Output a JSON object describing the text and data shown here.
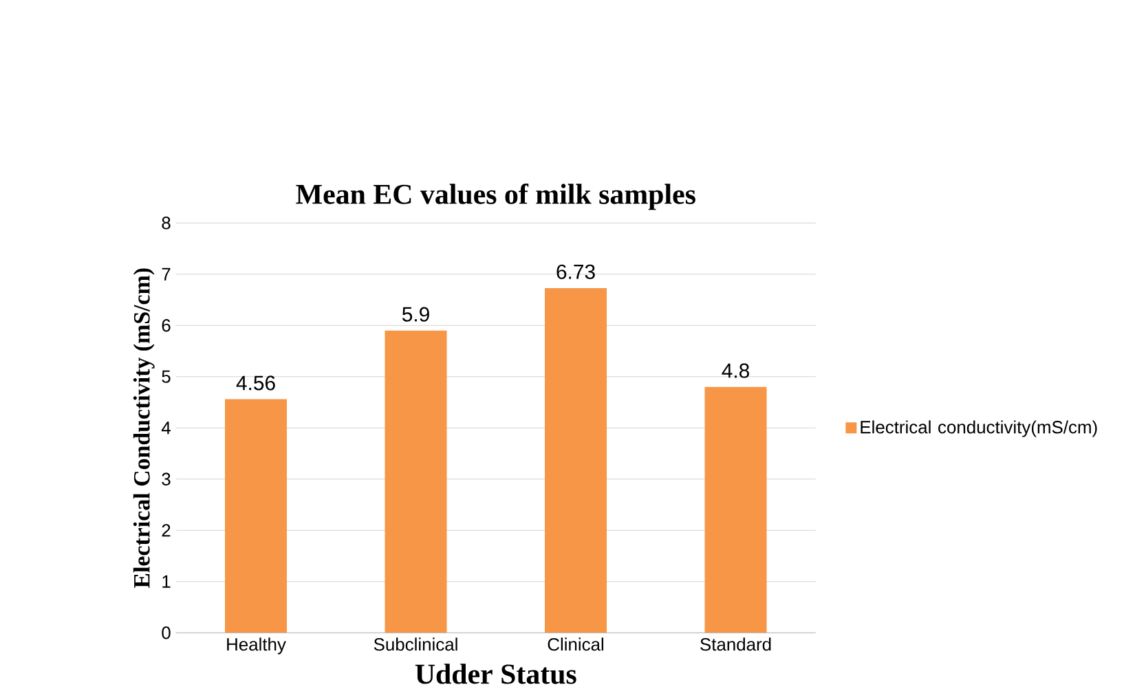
{
  "chart_data": {
    "type": "bar",
    "title": "Mean EC values of milk samples",
    "xlabel": "Udder Status",
    "ylabel": "Electrical Conductivity (mS/cm)",
    "categories": [
      "Healthy",
      "Subclinical",
      "Clinical",
      "Standard"
    ],
    "series": [
      {
        "name": "Electrical conductivity(mS/cm)",
        "color": "#f79646",
        "values": [
          4.56,
          5.9,
          6.73,
          4.8
        ]
      }
    ],
    "ylim": [
      0,
      8
    ],
    "yticks": [
      0,
      1,
      2,
      3,
      4,
      5,
      6,
      7,
      8
    ],
    "grid": "y",
    "legend": "right",
    "data_labels": true
  }
}
